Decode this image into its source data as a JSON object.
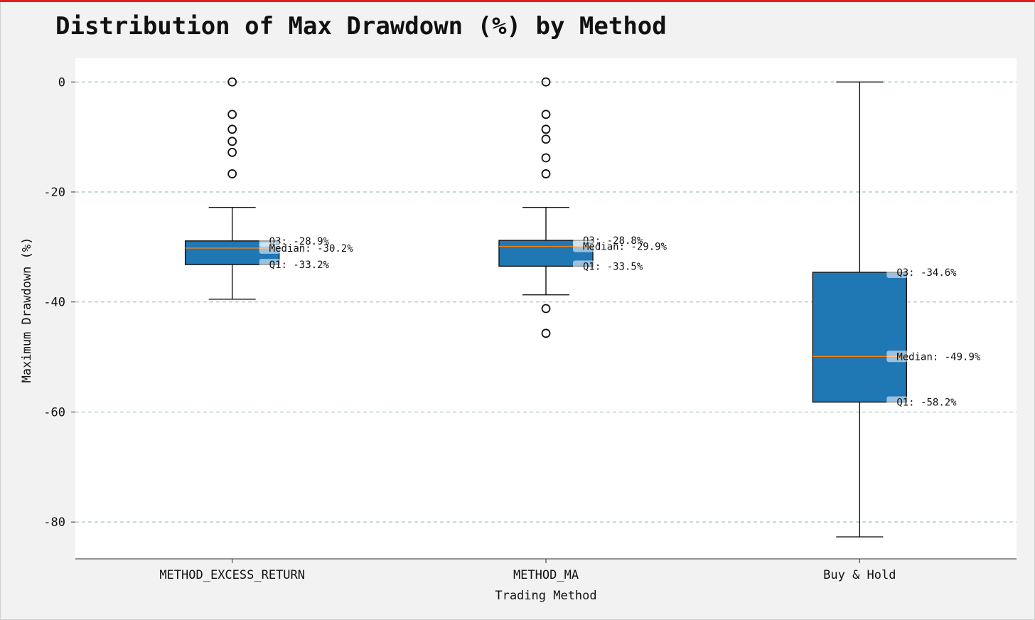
{
  "chart_data": {
    "type": "box",
    "title": "Distribution of Max Drawdown (%) by Method",
    "xlabel": "Trading Method",
    "ylabel": "Maximum Drawdown (%)",
    "ylim": [
      -86.7,
      4.3
    ],
    "yticks": [
      0,
      -20,
      -40,
      -60,
      -80
    ],
    "grid": "y-dashed",
    "box_color": "#1f77b4",
    "median_color": "#ff7f0e",
    "grid_color": "#8fb0b0",
    "series": [
      {
        "category": "METHOD_EXCESS_RETURN",
        "whisker_low": -39.5,
        "q1": -33.2,
        "median": -30.2,
        "q3": -28.9,
        "whisker_high": -22.8,
        "outliers": [
          0,
          -5.9,
          -8.6,
          -10.8,
          -12.8,
          -16.7
        ],
        "annotations": {
          "q3": "Q3: -28.9%",
          "median": "Median: -30.2%",
          "q1": "Q1: -33.2%"
        }
      },
      {
        "category": "METHOD_MA",
        "whisker_low": -38.7,
        "q1": -33.5,
        "median": -29.9,
        "q3": -28.8,
        "whisker_high": -22.8,
        "outliers": [
          0,
          -5.9,
          -8.6,
          -10.4,
          -13.8,
          -16.7,
          -41.2,
          -45.7
        ],
        "annotations": {
          "q3": "Q3: -28.8%",
          "median": "Median: -29.9%",
          "q1": "Q1: -33.5%"
        }
      },
      {
        "category": "Buy & Hold",
        "whisker_low": -82.7,
        "q1": -58.2,
        "median": -49.9,
        "q3": -34.6,
        "whisker_high": 0,
        "outliers": [],
        "annotations": {
          "q3": "Q3: -34.6%",
          "median": "Median: -49.9%",
          "q1": "Q1: -58.2%"
        }
      }
    ]
  }
}
